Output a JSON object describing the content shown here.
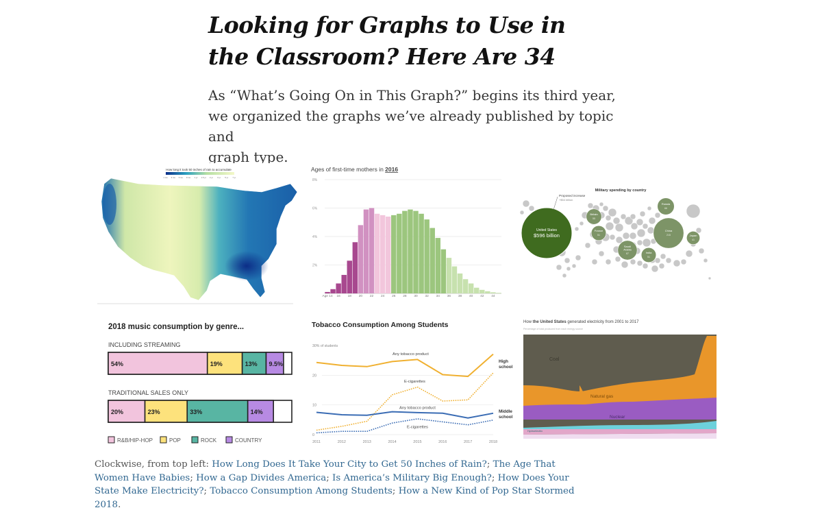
{
  "article": {
    "headline_line1": "Looking for Graphs to Use in",
    "headline_line2": "the Classroom? Here Are 34",
    "dek_line1": "As “What’s Going On in This Graph?” begins its third year,",
    "dek_line2": "we organized the graphs we’ve already published by topic and",
    "dek_line3": "graph type."
  },
  "caption": {
    "prefix": "Clockwise, from top left: ",
    "links": [
      "How Long Does It Take Your City to Get 50 Inches of Rain?",
      "The Age That Women Have Babies",
      "How a Gap Divides America",
      "Is America’s Military Big Enough?",
      "How Does Your State Make Electricity?",
      "Tobacco Consumption Among Students",
      "How a New Kind of Pop Star Stormed 2018"
    ],
    "separator": "; ",
    "suffix": "."
  },
  "rain_map": {
    "legend_title": "How long it took 50 inches of rain to accumulate",
    "legend_labels": [
      "1 mo.",
      "3 mo.",
      "6 mo.",
      "9 mo.",
      "1 yr.",
      "1.5 yr.",
      "2 yr.",
      "3 yr.",
      "5 yr.",
      "7 yr."
    ],
    "colors": {
      "dark": "#0b2f8a",
      "mid": "#2aa0c0",
      "light": "#e3f0a6",
      "pale": "#f4f8c8"
    }
  },
  "chart_data": [
    {
      "type": "bar",
      "title": "Ages of first-time mothers in 2016",
      "title_year": "2016",
      "categories": [
        14,
        15,
        16,
        17,
        18,
        19,
        20,
        21,
        22,
        23,
        24,
        25,
        26,
        27,
        28,
        29,
        30,
        31,
        32,
        33,
        34,
        35,
        36,
        37,
        38,
        39,
        40,
        41,
        42,
        43,
        44,
        45
      ],
      "values": [
        0.1,
        0.3,
        0.7,
        1.3,
        2.3,
        3.6,
        4.8,
        5.9,
        6.0,
        5.6,
        5.5,
        5.4,
        5.5,
        5.6,
        5.8,
        5.9,
        5.8,
        5.6,
        5.2,
        4.6,
        3.9,
        3.1,
        2.5,
        1.9,
        1.4,
        1.0,
        0.7,
        0.4,
        0.25,
        0.15,
        0.08,
        0.04
      ],
      "ytick_labels": [
        "8%",
        "6%",
        "4%",
        "2%"
      ],
      "ytick_values": [
        8,
        6,
        4,
        2
      ],
      "xtick_labels": [
        "Age 14",
        "16",
        "18",
        "20",
        "22",
        "24",
        "26",
        "28",
        "30",
        "32",
        "34",
        "36",
        "38",
        "40",
        "42",
        "44"
      ],
      "ylim": [
        0,
        8
      ],
      "colors": {
        "teen": "#a8488f",
        "early20s": "#d191c1",
        "mid20s": "#f2c6dc",
        "thirties": "#9cc67e",
        "late": "#c7e1ae"
      }
    },
    {
      "type": "bubble",
      "title": "Military spending by country",
      "annotation_line1": "Proposed increase",
      "annotation_line2": "+$54 billion",
      "countries": [
        {
          "name": "United States",
          "value": 596,
          "label": "$596 billion"
        },
        {
          "name": "Russia",
          "value": 66,
          "label": "66"
        },
        {
          "name": "Britain",
          "value": 55,
          "label": "55"
        },
        {
          "name": "France",
          "value": 51,
          "label": "51"
        },
        {
          "name": "China",
          "value": 215,
          "label": "215"
        },
        {
          "name": "Japan",
          "value": 41,
          "label": "41"
        },
        {
          "name": "Saudi Arabia",
          "value": 87,
          "label": "87"
        },
        {
          "name": "India",
          "value": 51,
          "label": "51"
        }
      ],
      "colors": {
        "us": "#3f6b1f",
        "country": "#7d9467",
        "other": "#c8c8c8"
      }
    },
    {
      "type": "stacked-bar",
      "title": "2018 music consumption by genre...",
      "rows": [
        {
          "label": "INCLUDING STREAMING",
          "values": [
            54,
            19,
            13,
            9.5
          ],
          "value_labels": [
            "54%",
            "19%",
            "13%",
            "9.5%"
          ]
        },
        {
          "label": "TRADITIONAL SALES ONLY",
          "values": [
            20,
            23,
            33,
            14
          ],
          "value_labels": [
            "20%",
            "23%",
            "33%",
            "14%"
          ]
        }
      ],
      "legend": [
        "R&B/HIP-HOP",
        "POP",
        "ROCK",
        "COUNTRY"
      ],
      "colors": [
        "#f2c4dd",
        "#fde27c",
        "#58b5a3",
        "#b78ae3"
      ]
    },
    {
      "type": "line",
      "title": "Tobacco Consumption Among Students",
      "y_label": "30% of students",
      "yticks": [
        20,
        10,
        0
      ],
      "ylim": [
        0,
        30
      ],
      "x": [
        2011,
        2012,
        2013,
        2014,
        2015,
        2016,
        2017,
        2018
      ],
      "series": [
        {
          "name": "Any tobacco product",
          "group": "High school",
          "style": "solid",
          "color": "#f0b030",
          "values": [
            24.3,
            23.3,
            22.9,
            24.6,
            25.3,
            20.2,
            19.6,
            27.1
          ]
        },
        {
          "name": "E-cigarettes",
          "group": "High school",
          "style": "dotted",
          "color": "#f0b030",
          "values": [
            1.5,
            2.8,
            4.5,
            13.4,
            16.0,
            11.3,
            11.7,
            20.8
          ]
        },
        {
          "name": "Any tobacco product",
          "group": "Middle school",
          "style": "solid",
          "color": "#3a6cb4",
          "values": [
            7.5,
            6.7,
            6.5,
            7.7,
            7.4,
            7.2,
            5.6,
            7.2
          ]
        },
        {
          "name": "E-cigarettes",
          "group": "Middle school",
          "style": "dotted",
          "color": "#3a6cb4",
          "values": [
            0.6,
            1.1,
            1.1,
            3.9,
            5.3,
            4.3,
            3.3,
            4.9
          ]
        }
      ],
      "end_labels": {
        "high_line1": "High",
        "high_line2": "school",
        "middle_line1": "Middle",
        "middle_line2": "school"
      },
      "inline_labels": {
        "hs_any": "Any tobacco product",
        "hs_ecig": "E-cigarettes",
        "ms_any": "Any tobacco product",
        "ms_ecig": "E-cigarettes"
      }
    },
    {
      "type": "area",
      "title_pre": "How ",
      "title_bold": "the United States",
      "title_post": " generated electricity from 2001 to 2017",
      "subtitle": "Percentage of total produced from each energy source",
      "x": [
        2001,
        2017
      ],
      "series_labels": {
        "coal": "Coal",
        "gas": "Natural gas",
        "nuclear": "Nuclear",
        "hydro": "Hydroelectric"
      },
      "colors": {
        "coal": "#5f5c4e",
        "gas": "#e9962a",
        "nuclear": "#9a5cc2",
        "hydro": "#6dd1dc",
        "pink": "#e2a7c9",
        "other": "#f0ddf0"
      }
    }
  ]
}
